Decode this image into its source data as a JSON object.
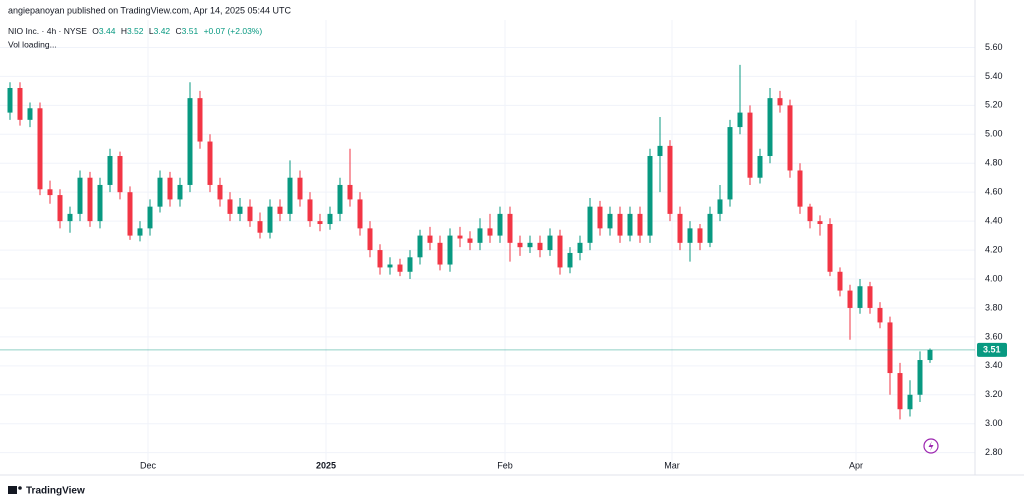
{
  "byline": "angiepanoyan published on TradingView.com, Apr 14, 2025 05:44 UTC",
  "legend": {
    "symbol": "NIO Inc. · 4h · NYSE",
    "open_prefix": "O",
    "high_prefix": "H",
    "low_prefix": "L",
    "close_prefix": "C",
    "change": "+0.07 (+2.03%)",
    "volume": "Vol loading..."
  },
  "brand": "TradingView",
  "chart_data": {
    "type": "candlestick",
    "up_color": "#089981",
    "down_color": "#f23645",
    "grid": true,
    "xlim": [
      -1,
      96.5
    ],
    "xticks": [
      {
        "value": 13.8,
        "label": "Dec"
      },
      {
        "value": 31.6,
        "label": "2025"
      },
      {
        "value": 49.5,
        "label": "Feb"
      },
      {
        "value": 66.2,
        "label": "Mar"
      },
      {
        "value": 84.6,
        "label": "Apr"
      }
    ],
    "ylim": [
      2.68,
      5.79
    ],
    "yticks": [
      {
        "value": 5.6,
        "label": "5.60"
      },
      {
        "value": 5.4,
        "label": "5.40"
      },
      {
        "value": 5.2,
        "label": "5.20"
      },
      {
        "value": 5.0,
        "label": "5.00"
      },
      {
        "value": 4.8,
        "label": "4.80"
      },
      {
        "value": 4.6,
        "label": "4.60"
      },
      {
        "value": 4.4,
        "label": "4.40"
      },
      {
        "value": 4.2,
        "label": "4.20"
      },
      {
        "value": 4.0,
        "label": "4.00"
      },
      {
        "value": 3.8,
        "label": "3.80"
      },
      {
        "value": 3.6,
        "label": "3.60"
      },
      {
        "value": 3.4,
        "label": "3.40"
      },
      {
        "value": 3.2,
        "label": "3.20"
      },
      {
        "value": 3.0,
        "label": "3.00"
      },
      {
        "value": 2.8,
        "label": "2.80"
      }
    ],
    "open": [
      5.15,
      5.32,
      5.1,
      5.18,
      4.62,
      4.58,
      4.4,
      4.45,
      4.7,
      4.4,
      4.65,
      4.85,
      4.6,
      4.3,
      4.35,
      4.5,
      4.7,
      4.55,
      4.65,
      5.25,
      4.95,
      4.65,
      4.55,
      4.45,
      4.5,
      4.4,
      4.32,
      4.5,
      4.45,
      4.7,
      4.55,
      4.4,
      4.38,
      4.45,
      4.65,
      4.55,
      4.35,
      4.2,
      4.08,
      4.1,
      4.05,
      4.15,
      4.3,
      4.25,
      4.1,
      4.3,
      4.28,
      4.25,
      4.35,
      4.3,
      4.45,
      4.25,
      4.22,
      4.25,
      4.2,
      4.3,
      4.08,
      4.18,
      4.25,
      4.5,
      4.35,
      4.45,
      4.3,
      4.45,
      4.3,
      4.85,
      4.92,
      4.45,
      4.25,
      4.35,
      4.25,
      4.45,
      4.55,
      5.05,
      5.15,
      4.7,
      4.85,
      5.25,
      5.2,
      4.75,
      4.5,
      4.4,
      4.38,
      4.05,
      3.92,
      3.8,
      3.95,
      3.8,
      3.7,
      3.35,
      3.1,
      3.2,
      3.44
    ],
    "high": [
      5.36,
      5.36,
      5.22,
      5.22,
      4.68,
      4.62,
      4.5,
      4.75,
      4.74,
      4.7,
      4.9,
      4.88,
      4.64,
      4.4,
      4.55,
      4.75,
      4.74,
      4.7,
      5.36,
      5.3,
      5.0,
      4.7,
      4.6,
      4.56,
      4.55,
      4.46,
      4.55,
      4.55,
      4.82,
      4.75,
      4.6,
      4.45,
      4.5,
      4.7,
      4.9,
      4.6,
      4.4,
      4.24,
      4.15,
      4.14,
      4.2,
      4.34,
      4.36,
      4.3,
      4.35,
      4.36,
      4.33,
      4.42,
      4.45,
      4.5,
      4.5,
      4.3,
      4.3,
      4.3,
      4.35,
      4.34,
      4.22,
      4.3,
      4.56,
      4.54,
      4.5,
      4.5,
      4.5,
      4.5,
      4.9,
      5.12,
      4.96,
      4.5,
      4.4,
      4.38,
      4.5,
      4.65,
      5.1,
      5.48,
      5.2,
      4.9,
      5.32,
      5.3,
      5.24,
      4.8,
      4.52,
      4.44,
      4.42,
      4.08,
      3.96,
      4.0,
      3.98,
      3.84,
      3.74,
      3.42,
      3.3,
      3.5,
      3.52
    ],
    "low": [
      5.1,
      5.06,
      5.05,
      4.58,
      4.52,
      4.35,
      4.32,
      4.4,
      4.36,
      4.35,
      4.6,
      4.55,
      4.27,
      4.26,
      4.3,
      4.46,
      4.5,
      4.5,
      4.6,
      4.9,
      4.6,
      4.5,
      4.4,
      4.4,
      4.36,
      4.28,
      4.28,
      4.4,
      4.4,
      4.5,
      4.36,
      4.33,
      4.34,
      4.4,
      4.5,
      4.3,
      4.15,
      4.03,
      4.03,
      4.02,
      4.0,
      4.1,
      4.2,
      4.06,
      4.05,
      4.22,
      4.2,
      4.2,
      4.25,
      4.25,
      4.12,
      4.16,
      4.18,
      4.15,
      4.16,
      4.03,
      4.04,
      4.13,
      4.2,
      4.3,
      4.3,
      4.25,
      4.26,
      4.25,
      4.25,
      4.6,
      4.4,
      4.2,
      4.12,
      4.2,
      4.22,
      4.4,
      4.5,
      5.0,
      4.65,
      4.66,
      4.8,
      5.15,
      4.7,
      4.45,
      4.35,
      4.3,
      4.02,
      3.88,
      3.58,
      3.76,
      3.76,
      3.66,
      3.2,
      3.03,
      3.05,
      3.15,
      3.42
    ],
    "close": [
      5.32,
      5.1,
      5.18,
      4.62,
      4.58,
      4.4,
      4.45,
      4.7,
      4.4,
      4.65,
      4.85,
      4.6,
      4.3,
      4.35,
      4.5,
      4.7,
      4.55,
      4.65,
      5.25,
      4.95,
      4.65,
      4.55,
      4.45,
      4.5,
      4.4,
      4.32,
      4.5,
      4.45,
      4.7,
      4.55,
      4.4,
      4.38,
      4.45,
      4.65,
      4.55,
      4.35,
      4.2,
      4.08,
      4.1,
      4.05,
      4.15,
      4.3,
      4.25,
      4.1,
      4.3,
      4.28,
      4.25,
      4.35,
      4.3,
      4.45,
      4.25,
      4.22,
      4.25,
      4.2,
      4.3,
      4.08,
      4.18,
      4.25,
      4.5,
      4.35,
      4.45,
      4.3,
      4.45,
      4.3,
      4.85,
      4.92,
      4.45,
      4.25,
      4.35,
      4.25,
      4.45,
      4.55,
      5.05,
      5.15,
      4.7,
      4.85,
      5.25,
      5.2,
      4.75,
      4.5,
      4.4,
      4.38,
      4.05,
      3.92,
      3.8,
      3.95,
      3.8,
      3.7,
      3.35,
      3.1,
      3.2,
      3.44,
      3.51
    ]
  }
}
